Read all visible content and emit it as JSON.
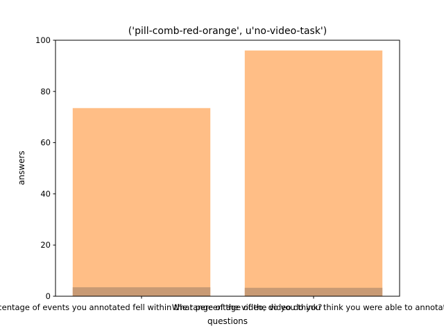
{
  "chart_data": {
    "type": "bar",
    "title": "('pill-comb-red-orange', u'no-video-task')",
    "xlabel": "questions",
    "ylabel": "answers",
    "ylim": [
      0,
      100
    ],
    "yticks": [
      0,
      20,
      40,
      60,
      80,
      100
    ],
    "grid": false,
    "categories": [
      "What percentage of events you annotated fell within the range of the video, do you think?",
      "What percentage of the video do you think you were able to annotate?"
    ],
    "series": [
      {
        "values": [
          73.5,
          96
        ],
        "color": "#ffbe86"
      },
      {
        "values": [
          3.5,
          3.3
        ],
        "color": "#c89a74"
      }
    ]
  }
}
